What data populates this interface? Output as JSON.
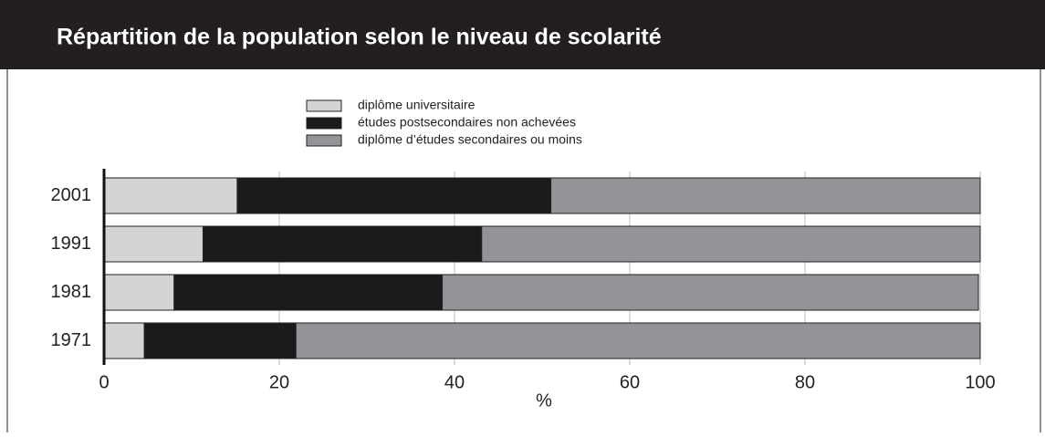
{
  "chart_data": {
    "type": "stacked_barh",
    "title": "Répartition de la population selon le niveau de scolarité",
    "categories": [
      "2001",
      "1991",
      "1981",
      "1971"
    ],
    "series": [
      {
        "name": "diplôme universitaire",
        "color": "#d4d4d4",
        "values": [
          15.2,
          11.3,
          8.0,
          4.6
        ]
      },
      {
        "name": "études postsecondaires non achevées",
        "color": "#1b1b1b",
        "values": [
          35.8,
          31.8,
          30.6,
          17.3
        ]
      },
      {
        "name": "diplôme d’études secondaires ou moins",
        "color": "#929497",
        "values": [
          49.0,
          56.9,
          61.2,
          78.1
        ]
      }
    ],
    "xlabel": "%",
    "xlim": [
      0,
      100
    ],
    "xticks": [
      0,
      20,
      40,
      60,
      80,
      100
    ]
  }
}
